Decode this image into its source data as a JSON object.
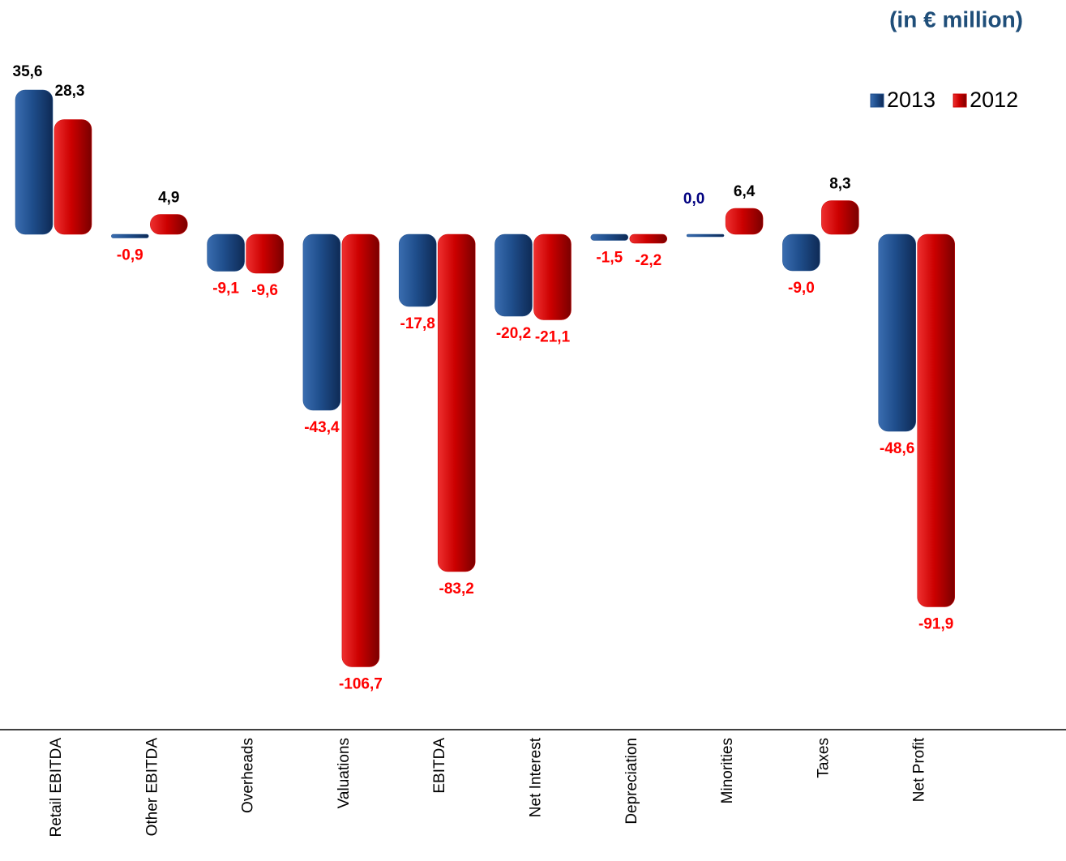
{
  "chart_data": {
    "type": "bar",
    "subtitle": "(in € million)",
    "categories": [
      "Retail EBITDA",
      "Other EBITDA",
      "Overheads",
      "Valuations",
      "EBITDA",
      "Net Interest",
      "Depreciation",
      "Minorities",
      "Taxes",
      "Net Profit"
    ],
    "series": [
      {
        "name": "2013",
        "color": "#1f4e8c",
        "values": [
          35.6,
          -0.9,
          -9.1,
          -43.4,
          -17.8,
          -20.2,
          -1.5,
          0.0,
          -9.0,
          -48.6
        ],
        "value_labels": [
          "35,6",
          "-0,9",
          "-9,1",
          "-43,4",
          "-17,8",
          "-20,2",
          "-1,5",
          "0,0",
          "-9,0",
          "-48,6"
        ]
      },
      {
        "name": "2012",
        "color": "#cc0000",
        "values": [
          28.3,
          4.9,
          -9.6,
          -106.7,
          -83.2,
          -21.1,
          -2.2,
          6.4,
          8.3,
          -91.9
        ],
        "value_labels": [
          "28,3",
          "4,9",
          "-9,6",
          "-106,7",
          "-83,2",
          "-21,1",
          "-2,2",
          "6,4",
          "8,3",
          "-91,9"
        ]
      }
    ],
    "legend": "top-right"
  }
}
